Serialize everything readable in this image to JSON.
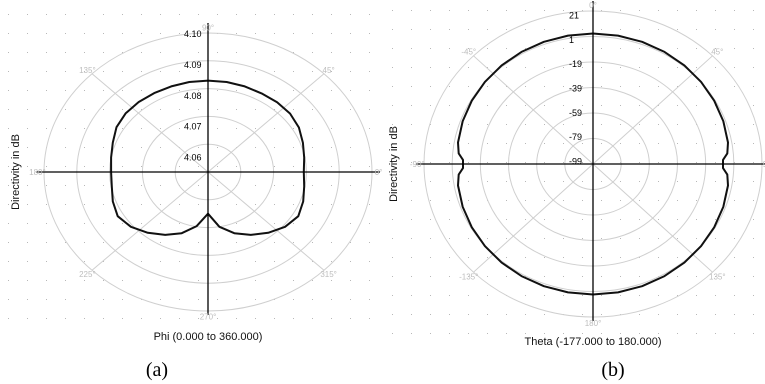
{
  "chart_data": [
    {
      "type": "polar",
      "caption": "(a)",
      "xlabel": "Phi (0.000 to 360.000)",
      "ylabel": "Directivity in dB",
      "angle_unit": "deg",
      "angle_labels": [
        "0°",
        "45°",
        "90°",
        "135°",
        "180°",
        "225°",
        "270°",
        "315°"
      ],
      "radial_ticks": [
        "4.10",
        "4.09",
        "4.08",
        "4.07",
        "4.06"
      ],
      "rlim": [
        4.055,
        4.1
      ],
      "grid": true,
      "series": [
        {
          "theta": [
            0,
            10,
            20,
            30,
            40,
            50,
            60,
            70,
            80,
            90,
            100,
            110,
            120,
            130,
            140,
            150,
            160,
            170,
            180,
            190,
            200,
            210,
            220,
            230,
            240,
            250,
            260,
            270,
            280,
            290,
            300,
            310,
            320,
            330,
            340,
            350
          ],
          "r": [
            4.0813,
            4.0818,
            4.0827,
            4.0838,
            4.0844,
            4.0845,
            4.0844,
            4.0845,
            4.0846,
            4.0846,
            4.0846,
            4.0845,
            4.0845,
            4.0846,
            4.0845,
            4.084,
            4.0828,
            4.082,
            4.0816,
            4.0818,
            4.0828,
            4.0836,
            4.0826,
            4.0807,
            4.0785,
            4.0761,
            4.0728,
            4.0685,
            4.073,
            4.0761,
            4.0785,
            4.0807,
            4.0826,
            4.0836,
            4.0828,
            4.0818
          ]
        }
      ]
    },
    {
      "type": "polar",
      "caption": "(b)",
      "xlabel": "Theta (-177.000 to 180.000)",
      "ylabel": "Directivity in dB",
      "angle_unit": "deg",
      "angle_labels": [
        "0°",
        "45°",
        "90°",
        "135°",
        "180°",
        "-135°",
        "-90°",
        "-45°"
      ],
      "radial_ticks": [
        "21",
        "1",
        "-19",
        "-39",
        "-59",
        "-79",
        "-99"
      ],
      "rlim": [
        -102,
        24
      ],
      "grid": true,
      "series": [
        {
          "theta": [
            0,
            10,
            20,
            30,
            40,
            50,
            60,
            70,
            80,
            85,
            88,
            92,
            95,
            100,
            110,
            120,
            130,
            140,
            150,
            160,
            170,
            180,
            -170,
            -160,
            -150,
            -140,
            -130,
            -120,
            -110,
            -100,
            -95,
            -92,
            -88,
            -85,
            -80,
            -70,
            -60,
            -50,
            -40,
            -30,
            -20,
            -10
          ],
          "r": [
            5.5,
            5.4,
            5.1,
            4.6,
            4,
            3.2,
            2.3,
            1.4,
            0.2,
            -1.5,
            -5,
            -5,
            -1.5,
            0.2,
            1.4,
            2.3,
            3.2,
            4,
            4.6,
            5.1,
            5.4,
            5.5,
            5.4,
            5.1,
            4.6,
            4,
            3.2,
            2.3,
            1.4,
            0.2,
            -1.5,
            -5,
            -5,
            -1.5,
            0.2,
            1.4,
            2.3,
            3.2,
            4,
            4.6,
            5.1,
            5.4
          ]
        }
      ]
    }
  ]
}
